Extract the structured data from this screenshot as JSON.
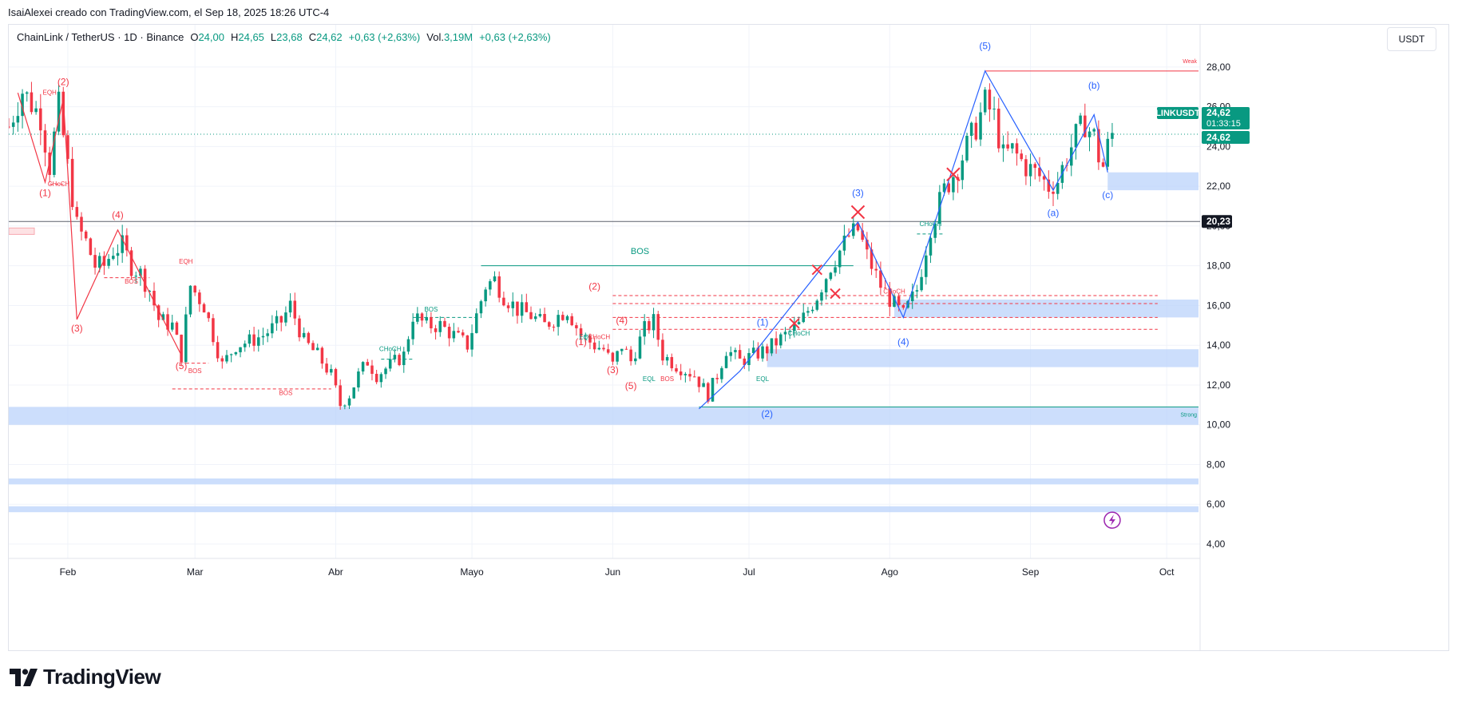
{
  "caption": "IsaiAlexei creado con TradingView.com, el Sep 18, 2025 18:26 UTC-4",
  "header": {
    "symbol": "ChainLink / TetherUS · 1D · Binance",
    "open_label": "O",
    "open_value": "24,00",
    "high_label": "H",
    "high_value": "24,65",
    "low_label": "L",
    "low_value": "23,68",
    "close_label": "C",
    "close_value": "24,62",
    "change": "+0,63 (+2,63%)",
    "volume_label": "Vol.",
    "volume_value": "3,19M",
    "volume_change": "+0,63 (+2,63%)"
  },
  "currency": "USDT",
  "logo_text": "TradingView",
  "colors": {
    "up": "#089981",
    "down": "#f23645",
    "wave_blue": "#2962ff",
    "wave_red": "#f23645",
    "zone": "#bbd3fb",
    "grid": "#f0f3fa"
  },
  "badges": {
    "symbol_tag": "LINKUSDT",
    "price_tag": "24,62",
    "countdown": "01:33:15",
    "last_price": "24,62",
    "level_tag": "20,23"
  },
  "annotations": {
    "weak_high": "Weak",
    "strong_low": "Strong"
  },
  "chart_data": {
    "type": "candlestick",
    "title": "ChainLink / TetherUS · 1D · Binance",
    "ylabel": "USDT",
    "ylim": [
      4,
      29
    ],
    "y_ticks": [
      "4,00",
      "6,00",
      "8,00",
      "10,00",
      "12,00",
      "14,00",
      "16,00",
      "18,00",
      "20,00",
      "22,00",
      "24,00",
      "26,00",
      "28,00"
    ],
    "x_tick_labels": [
      "Feb",
      "Mar",
      "Abr",
      "Mayo",
      "Jun",
      "Jul",
      "Ago",
      "Sep",
      "Oct"
    ],
    "x_tick_days": [
      32,
      60,
      91,
      121,
      152,
      182,
      213,
      244,
      274
    ],
    "x_range_days": [
      19,
      281
    ],
    "close_path": [
      [
        19,
        25.0
      ],
      [
        22,
        26.8
      ],
      [
        26,
        25.5
      ],
      [
        28,
        23.0
      ],
      [
        30,
        26.0
      ],
      [
        32,
        23.0
      ],
      [
        34,
        20.0
      ],
      [
        36,
        19.2
      ],
      [
        38,
        18.0
      ],
      [
        40,
        18.0
      ],
      [
        42,
        18.8
      ],
      [
        44,
        19.0
      ],
      [
        46,
        18.0
      ],
      [
        48,
        17.6
      ],
      [
        50,
        16.8
      ],
      [
        52,
        15.3
      ],
      [
        55,
        15.0
      ],
      [
        57,
        13.5
      ],
      [
        59,
        17.0
      ],
      [
        62,
        16.0
      ],
      [
        64,
        14.5
      ],
      [
        66,
        13.0
      ],
      [
        69,
        14.0
      ],
      [
        72,
        14.2
      ],
      [
        75,
        14.5
      ],
      [
        79,
        15.2
      ],
      [
        81,
        16.0
      ],
      [
        84,
        14.2
      ],
      [
        87,
        13.5
      ],
      [
        90,
        12.5
      ],
      [
        92,
        11.0
      ],
      [
        94,
        11.5
      ],
      [
        96,
        12.5
      ],
      [
        98,
        13.2
      ],
      [
        100,
        12.5
      ],
      [
        103,
        13.0
      ],
      [
        106,
        13.5
      ],
      [
        108,
        15.5
      ],
      [
        111,
        15.0
      ],
      [
        114,
        15.0
      ],
      [
        117,
        14.5
      ],
      [
        120,
        14.0
      ],
      [
        124,
        17.0
      ],
      [
        126,
        17.3
      ],
      [
        128,
        16.5
      ],
      [
        131,
        15.8
      ],
      [
        134,
        15.5
      ],
      [
        137,
        15.0
      ],
      [
        140,
        15.5
      ],
      [
        142,
        15.8
      ],
      [
        145,
        14.5
      ],
      [
        148,
        14.0
      ],
      [
        150,
        13.8
      ],
      [
        152,
        13.0
      ],
      [
        154,
        14.0
      ],
      [
        156,
        13.2
      ],
      [
        159,
        14.8
      ],
      [
        161,
        15.2
      ],
      [
        163,
        13.5
      ],
      [
        166,
        13.0
      ],
      [
        170,
        12.5
      ],
      [
        173,
        11.5
      ],
      [
        175,
        12.5
      ],
      [
        177,
        13.8
      ],
      [
        180,
        13.2
      ],
      [
        183,
        13.5
      ],
      [
        186,
        13.8
      ],
      [
        190,
        14.5
      ],
      [
        193,
        15.0
      ],
      [
        197,
        16.5
      ],
      [
        200,
        18.0
      ],
      [
        204,
        19.5
      ],
      [
        206,
        19.8
      ],
      [
        208,
        18.5
      ],
      [
        211,
        17.0
      ],
      [
        214,
        16.0
      ],
      [
        216,
        15.5
      ],
      [
        219,
        16.8
      ],
      [
        222,
        20.0
      ],
      [
        225,
        21.8
      ],
      [
        228,
        23.0
      ],
      [
        232,
        25.0
      ],
      [
        234,
        26.2
      ],
      [
        236,
        25.5
      ],
      [
        238,
        23.5
      ],
      [
        240,
        23.8
      ],
      [
        243,
        23.0
      ],
      [
        246,
        22.5
      ],
      [
        248,
        22.0
      ],
      [
        250,
        22.3
      ],
      [
        252,
        23.5
      ],
      [
        254,
        24.5
      ],
      [
        256,
        25.2
      ],
      [
        257,
        24.8
      ],
      [
        258,
        24.5
      ],
      [
        259,
        23.5
      ],
      [
        260,
        23.0
      ],
      [
        261,
        24.0
      ],
      [
        262,
        24.62
      ]
    ],
    "waves": [
      {
        "name": "waves-2024-red",
        "color": "red",
        "points": [
          [
            21,
            26.7
          ],
          [
            27,
            22.2
          ],
          [
            31,
            26.4
          ],
          [
            34,
            15.3
          ],
          [
            43,
            19.8
          ],
          [
            57,
            13.5
          ]
        ]
      },
      {
        "name": "waves-2025-blue",
        "color": "blue",
        "points": [
          [
            171,
            10.8
          ],
          [
            180,
            12.7
          ],
          [
            206,
            20.2
          ],
          [
            216,
            15.4
          ],
          [
            234,
            27.8
          ],
          [
            249,
            21.8
          ],
          [
            258,
            25.6
          ],
          [
            261,
            22.7
          ]
        ]
      }
    ],
    "wave_labels": [
      {
        "text": "(1)",
        "color": "red",
        "day": 27,
        "price": 21.5
      },
      {
        "text": "(2)",
        "color": "red",
        "day": 31,
        "price": 27.1
      },
      {
        "text": "(3)",
        "color": "red",
        "day": 34,
        "price": 14.7
      },
      {
        "text": "(4)",
        "color": "red",
        "day": 43,
        "price": 20.4
      },
      {
        "text": "(5)",
        "color": "red",
        "day": 57,
        "price": 12.8
      },
      {
        "text": "(1)",
        "color": "red",
        "day": 145,
        "price": 14.0
      },
      {
        "text": "(2)",
        "color": "red",
        "day": 148,
        "price": 16.8
      },
      {
        "text": "(3)",
        "color": "red",
        "day": 152,
        "price": 12.6
      },
      {
        "text": "(4)",
        "color": "red",
        "day": 154,
        "price": 15.1
      },
      {
        "text": "(5)",
        "color": "red",
        "day": 156,
        "price": 11.8
      },
      {
        "text": "(1)",
        "color": "blue",
        "day": 185,
        "price": 15.0
      },
      {
        "text": "(2)",
        "color": "blue",
        "day": 186,
        "price": 10.4
      },
      {
        "text": "(3)",
        "color": "blue",
        "day": 206,
        "price": 21.5
      },
      {
        "text": "(4)",
        "color": "blue",
        "day": 216,
        "price": 14.0
      },
      {
        "text": "(5)",
        "color": "blue",
        "day": 234,
        "price": 28.9
      },
      {
        "text": "(a)",
        "color": "blue",
        "day": 249,
        "price": 20.5
      },
      {
        "text": "(b)",
        "color": "blue",
        "day": 258,
        "price": 26.9
      },
      {
        "text": "(c)",
        "color": "blue",
        "day": 261,
        "price": 21.4
      }
    ],
    "structure_labels": [
      {
        "text": "BOS",
        "color": "green",
        "day": 158,
        "price": 18.6,
        "size": 11
      },
      {
        "text": "BOS",
        "color": "green",
        "day": 112,
        "price": 15.7,
        "size": 8
      },
      {
        "text": "CHoCH",
        "color": "green",
        "day": 103,
        "price": 13.7,
        "size": 8
      },
      {
        "text": "CHoCH",
        "color": "green",
        "day": 193,
        "price": 14.5,
        "size": 8
      },
      {
        "text": "CHoCH",
        "color": "green",
        "day": 222,
        "price": 20.0,
        "size": 8
      },
      {
        "text": "EQL",
        "color": "green",
        "day": 146,
        "price": 14.3,
        "size": 8
      },
      {
        "text": "EQL",
        "color": "green",
        "day": 160,
        "price": 12.2,
        "size": 8
      },
      {
        "text": "EQL",
        "color": "green",
        "day": 185,
        "price": 12.2,
        "size": 8
      },
      {
        "text": "CHoCH",
        "color": "red",
        "day": 149,
        "price": 14.3,
        "size": 8
      },
      {
        "text": "CHoCH",
        "color": "red",
        "day": 214,
        "price": 16.6,
        "size": 8
      },
      {
        "text": "CHoCH",
        "color": "red",
        "day": 30,
        "price": 22.0,
        "size": 8
      },
      {
        "text": "EQH",
        "color": "red",
        "day": 28,
        "price": 26.6,
        "size": 8
      },
      {
        "text": "EQH",
        "color": "red",
        "day": 58,
        "price": 18.1,
        "size": 8
      },
      {
        "text": "BOS",
        "color": "red",
        "day": 46,
        "price": 17.1,
        "size": 8
      },
      {
        "text": "BOS",
        "color": "red",
        "day": 60,
        "price": 12.6,
        "size": 8
      },
      {
        "text": "BOS",
        "color": "red",
        "day": 80,
        "price": 11.5,
        "size": 8
      },
      {
        "text": "BOS",
        "color": "red",
        "day": 164,
        "price": 12.2,
        "size": 8
      }
    ],
    "structure_lines": [
      {
        "color": "green",
        "style": "solid",
        "day1": 123,
        "day2": 205,
        "price": 18.0
      },
      {
        "color": "green",
        "style": "solid",
        "day1": 171,
        "day2": 281,
        "price": 10.9
      },
      {
        "color": "green",
        "style": "dashed",
        "day1": 108,
        "day2": 122,
        "price": 15.4
      },
      {
        "color": "green",
        "style": "dashed",
        "day1": 101,
        "day2": 108,
        "price": 13.3
      },
      {
        "color": "green",
        "style": "dashed",
        "day1": 219,
        "day2": 225,
        "price": 19.6
      },
      {
        "color": "red",
        "style": "solid",
        "day1": 234,
        "day2": 281,
        "price": 27.8
      },
      {
        "color": "red",
        "style": "dashed",
        "day1": 55,
        "day2": 90,
        "price": 11.8
      },
      {
        "color": "red",
        "style": "dashed",
        "day1": 40,
        "day2": 50,
        "price": 17.4
      },
      {
        "color": "red",
        "style": "dashed",
        "day1": 58,
        "day2": 63,
        "price": 13.1
      },
      {
        "color": "red",
        "style": "dashed",
        "day1": 28,
        "day2": 31,
        "price": 22.1
      },
      {
        "color": "red",
        "style": "dashed",
        "day1": 152,
        "day2": 272,
        "price": 16.5
      },
      {
        "color": "red",
        "style": "dashed",
        "day1": 152,
        "day2": 272,
        "price": 16.1
      },
      {
        "color": "red",
        "style": "dashed",
        "day1": 152,
        "day2": 272,
        "price": 15.4
      },
      {
        "color": "red",
        "style": "dashed",
        "day1": 152,
        "day2": 272,
        "price": 14.8
      },
      {
        "color": "grey",
        "style": "solid",
        "day1": 19,
        "day2": 281,
        "price": 20.23
      }
    ],
    "zones": [
      {
        "day1": 19,
        "day2": 281,
        "top": 10.9,
        "bottom": 10.0
      },
      {
        "day1": 19,
        "day2": 281,
        "top": 7.3,
        "bottom": 7.0
      },
      {
        "day1": 19,
        "day2": 281,
        "top": 5.9,
        "bottom": 5.6
      },
      {
        "day1": 186,
        "day2": 281,
        "top": 13.8,
        "bottom": 12.9
      },
      {
        "day1": 214,
        "day2": 281,
        "top": 16.3,
        "bottom": 15.4
      },
      {
        "day1": 261,
        "day2": 281,
        "top": 22.7,
        "bottom": 21.8
      }
    ],
    "crosses": [
      {
        "day": 206,
        "price": 20.7,
        "size": "large"
      },
      {
        "day": 227,
        "price": 22.6,
        "size": "large"
      },
      {
        "day": 201,
        "price": 16.6,
        "size": "small"
      },
      {
        "day": 197,
        "price": 17.8,
        "size": "small"
      },
      {
        "day": 192,
        "price": 15.1,
        "size": "small"
      }
    ],
    "current_price": 24.62,
    "key_level": 20.23
  }
}
